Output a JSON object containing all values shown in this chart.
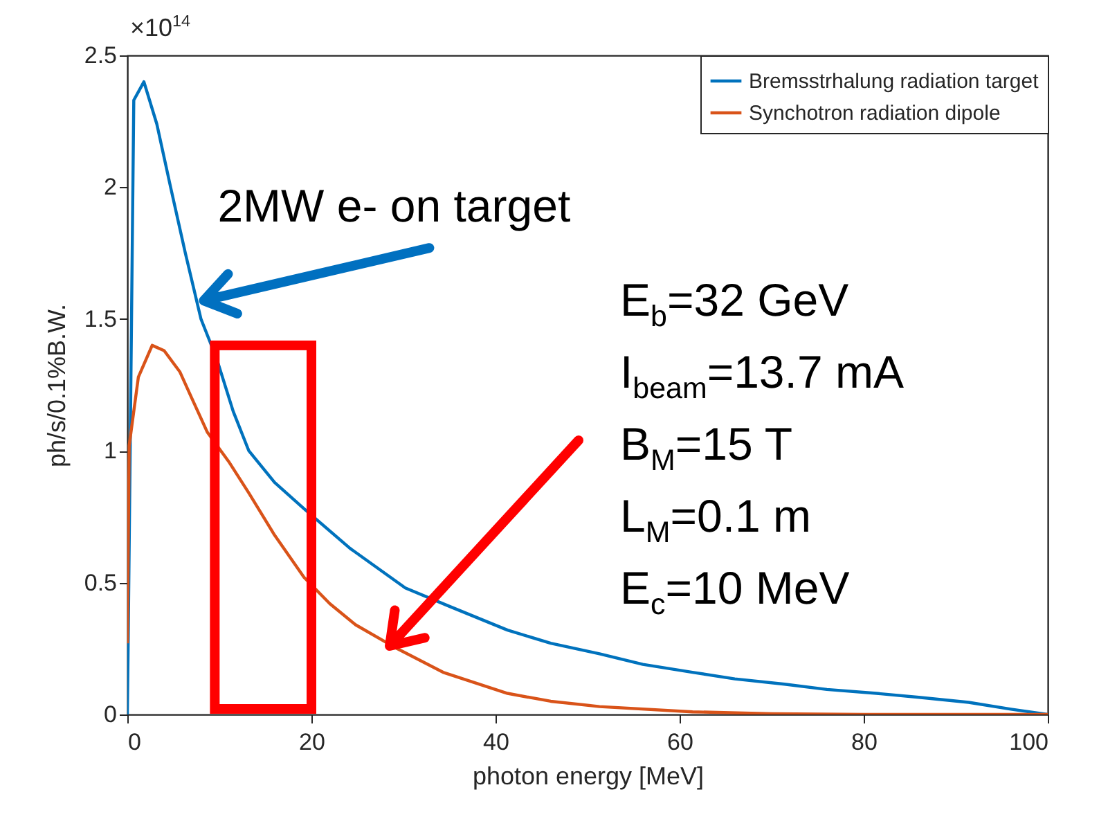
{
  "chart_data": {
    "type": "line",
    "xlabel": "photon energy [MeV]",
    "ylabel": "ph/s/0.1%B.W.",
    "xlim": [
      0,
      100
    ],
    "xticks": [
      0,
      20,
      40,
      60,
      80,
      100
    ],
    "ylim": [
      0,
      2.5
    ],
    "yticks": [
      0,
      0.5,
      1,
      1.5,
      2,
      2.5
    ],
    "grid": false,
    "legend": "top right",
    "marker": "none",
    "line_style": "solid",
    "series": [
      {
        "name": "Bremsstrhalung radiation target",
        "color": "#0072bd",
        "x": [
          0,
          0.1,
          0.7,
          1.8,
          3.2,
          4.7,
          6.3,
          8.0,
          9.7,
          11.5,
          13.2,
          16,
          19.2,
          24.2,
          30.2,
          35,
          41.3,
          46,
          51.3,
          56,
          61.4,
          66,
          71.4,
          76,
          81.4,
          86,
          91.4,
          96,
          100
        ],
        "values": [
          0,
          0.3,
          2.33,
          2.4,
          2.24,
          2.0,
          1.75,
          1.5,
          1.35,
          1.15,
          1.0,
          0.88,
          0.78,
          0.63,
          0.48,
          0.41,
          0.32,
          0.27,
          0.23,
          0.19,
          0.16,
          0.135,
          0.115,
          0.095,
          0.08,
          0.065,
          0.046,
          0.02,
          0
        ]
      },
      {
        "name": "Synchotron radiation dipole",
        "color": "#d95319",
        "x": [
          0,
          0.2,
          1.2,
          2.7,
          4,
          5.7,
          7,
          8.7,
          11,
          13.2,
          16,
          19.2,
          22,
          24.8,
          29.3,
          34.3,
          41.3,
          46,
          51.3,
          61.4,
          70,
          80,
          100
        ],
        "values": [
          0.27,
          1.02,
          1.28,
          1.4,
          1.38,
          1.3,
          1.2,
          1.07,
          0.96,
          0.84,
          0.68,
          0.52,
          0.42,
          0.34,
          0.25,
          0.16,
          0.08,
          0.05,
          0.03,
          0.01,
          0.003,
          0,
          0
        ]
      }
    ],
    "annotations": [
      "×10$^{14}$",
      {
        "text": "2MW e- on target",
        "x": 8.0,
        "y": 1.57
      },
      "E$_{b}$=32 GeV",
      "I$_{beam}$=13.7 mA",
      "B$_{M}$=15 T",
      "L$_{M}$=0.1 m",
      "E$_{c}$=10 MeV"
    ]
  }
}
